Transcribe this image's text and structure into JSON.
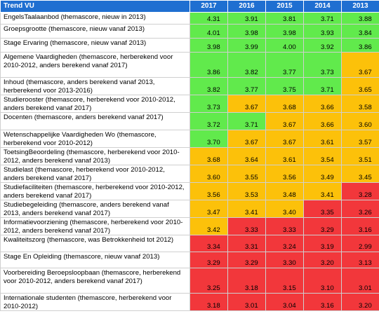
{
  "header": {
    "title": "Trend VU",
    "years": [
      "2017",
      "2016",
      "2015",
      "2014",
      "2013"
    ]
  },
  "colors": {
    "header_blue": "#1f6fd1",
    "green": "#61ea4c",
    "orange": "#fcc10a",
    "red": "#f2373b"
  },
  "rows": [
    {
      "label": "EngelsTaalaanbod (themascore, nieuw in 2013)",
      "values": [
        "4.31",
        "3.91",
        "3.81",
        "3.71",
        "3.88"
      ],
      "status": [
        "g",
        "g",
        "g",
        "g",
        "g"
      ]
    },
    {
      "label": "Groepsgrootte (themascore, nieuw vanaf 2013)",
      "values": [
        "4.01",
        "3.98",
        "3.98",
        "3.93",
        "3.84"
      ],
      "status": [
        "g",
        "g",
        "g",
        "g",
        "g"
      ]
    },
    {
      "label": "Stage Ervaring (themascore, nieuw vanaf 2013)",
      "values": [
        "3.98",
        "3.99",
        "4.00",
        "3.92",
        "3.86"
      ],
      "status": [
        "g",
        "g",
        "g",
        "g",
        "g"
      ]
    },
    {
      "label": "Algemene Vaardigheden (themascore, herberekend voor 2010-2012, anders berekend vanaf 2017)",
      "values": [
        "3.86",
        "3.82",
        "3.77",
        "3.73",
        "3.67"
      ],
      "status": [
        "g",
        "g",
        "g",
        "g",
        "o"
      ]
    },
    {
      "label": "Inhoud (themascore, anders berekend vanaf 2013, herberekend voor 2013-2016)",
      "values": [
        "3.82",
        "3.77",
        "3.75",
        "3.71",
        "3.65"
      ],
      "status": [
        "g",
        "g",
        "g",
        "g",
        "o"
      ]
    },
    {
      "label": "Studierooster (themascore, herberekend voor 2010-2012, anders berekend vanaf 2017)",
      "values": [
        "3.73",
        "3.67",
        "3.68",
        "3.66",
        "3.58"
      ],
      "status": [
        "g",
        "o",
        "o",
        "o",
        "o"
      ]
    },
    {
      "label": "Docenten (themascore, anders berekend vanaf 2017)",
      "values": [
        "3.72",
        "3.71",
        "3.67",
        "3.66",
        "3.60"
      ],
      "status": [
        "g",
        "g",
        "o",
        "o",
        "o"
      ]
    },
    {
      "label": "Wetenschappelijke Vaardigheden Wo (themascore, herberekend voor 2010-2012)",
      "values": [
        "3.70",
        "3.67",
        "3.67",
        "3.61",
        "3.57"
      ],
      "status": [
        "g",
        "o",
        "o",
        "o",
        "o"
      ]
    },
    {
      "label": "ToetsingBeoordeling (themascore, herberekend voor 2010-2012, anders berekend vanaf 2013)",
      "values": [
        "3.68",
        "3.64",
        "3.61",
        "3.54",
        "3.51"
      ],
      "status": [
        "o",
        "o",
        "o",
        "o",
        "o"
      ]
    },
    {
      "label": "Studielast (themascore, herberekend voor 2010-2012, anders berekend vanaf 2017)",
      "values": [
        "3.60",
        "3.55",
        "3.56",
        "3.49",
        "3.45"
      ],
      "status": [
        "o",
        "o",
        "o",
        "o",
        "o"
      ]
    },
    {
      "label": "Studiefaciliteiten (themascore, herberekend voor 2010-2012, anders berekend vanaf 2017)",
      "values": [
        "3.56",
        "3.53",
        "3.48",
        "3.41",
        "3.28"
      ],
      "status": [
        "o",
        "o",
        "o",
        "o",
        "r"
      ]
    },
    {
      "label": "Studiebegeleiding (themascore, anders berekend vanaf 2013, anders berekend vanaf 2017)",
      "values": [
        "3.47",
        "3.41",
        "3.40",
        "3.35",
        "3.26"
      ],
      "status": [
        "o",
        "o",
        "o",
        "r",
        "r"
      ]
    },
    {
      "label": "Informatievoorziening (themascore, herberekend voor 2010-2012, anders berekend vanaf 2017)",
      "values": [
        "3.42",
        "3.33",
        "3.33",
        "3.29",
        "3.16"
      ],
      "status": [
        "o",
        "r",
        "r",
        "r",
        "r"
      ]
    },
    {
      "label": "Kwaliteitszorg (themascore, was Betrokkenheid tot 2012)",
      "values": [
        "3.34",
        "3.31",
        "3.24",
        "3.19",
        "2.99"
      ],
      "status": [
        "r",
        "r",
        "r",
        "r",
        "r"
      ]
    },
    {
      "label": "Stage En Opleiding (themascore, nieuw vanaf 2013)",
      "values": [
        "3.29",
        "3.29",
        "3.30",
        "3.20",
        "3.13"
      ],
      "status": [
        "r",
        "r",
        "r",
        "r",
        "r"
      ]
    },
    {
      "label": "Voorbereiding Beroepsloopbaan (themascore, herberekend voor 2010-2012, anders berekend vanaf 2017)",
      "values": [
        "3.25",
        "3.18",
        "3.15",
        "3.10",
        "3.01"
      ],
      "status": [
        "r",
        "r",
        "r",
        "r",
        "r"
      ]
    },
    {
      "label": "Internationale studenten (themascore, herberekend voor 2010-2012)",
      "values": [
        "3.18",
        "3.01",
        "3.04",
        "3.16",
        "3.20"
      ],
      "status": [
        "r",
        "r",
        "r",
        "r",
        "r"
      ]
    }
  ]
}
